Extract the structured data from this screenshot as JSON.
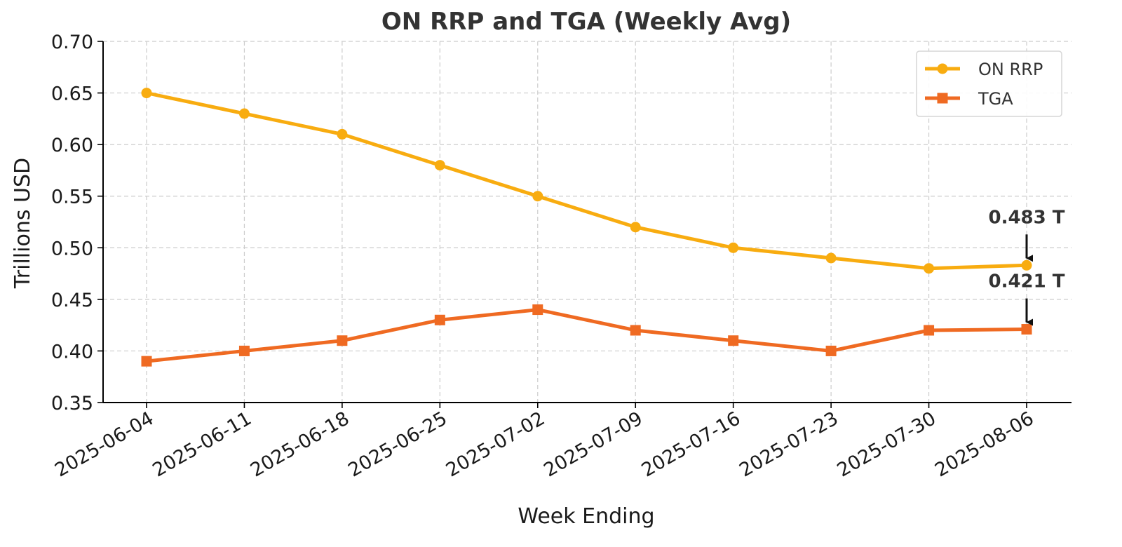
{
  "chart_data": {
    "type": "line",
    "title": "ON RRP and TGA (Weekly Avg)",
    "xlabel": "Week Ending",
    "ylabel": "Trillions USD",
    "categories": [
      "2025-06-04",
      "2025-06-11",
      "2025-06-18",
      "2025-06-25",
      "2025-07-02",
      "2025-07-09",
      "2025-07-16",
      "2025-07-23",
      "2025-07-30",
      "2025-08-06"
    ],
    "ylim": [
      0.35,
      0.7
    ],
    "yticks": [
      0.35,
      0.4,
      0.45,
      0.5,
      0.55,
      0.6,
      0.65,
      0.7
    ],
    "ytick_labels": [
      "0.35",
      "0.40",
      "0.45",
      "0.50",
      "0.55",
      "0.60",
      "0.65",
      "0.70"
    ],
    "grid": true,
    "legend_position": "top-right",
    "series": [
      {
        "name": "ON RRP",
        "color": "#f8ac10",
        "marker": "circle",
        "values": [
          0.65,
          0.63,
          0.61,
          0.58,
          0.55,
          0.52,
          0.5,
          0.49,
          0.48,
          0.483
        ]
      },
      {
        "name": "TGA",
        "color": "#ef6a22",
        "marker": "square",
        "values": [
          0.39,
          0.4,
          0.41,
          0.43,
          0.44,
          0.42,
          0.41,
          0.4,
          0.42,
          0.421
        ]
      }
    ],
    "annotations": [
      {
        "text": "0.483 T",
        "series": "ON RRP",
        "category": "2025-08-06",
        "value": 0.483
      },
      {
        "text": "0.421 T",
        "series": "TGA",
        "category": "2025-08-06",
        "value": 0.421
      }
    ]
  }
}
